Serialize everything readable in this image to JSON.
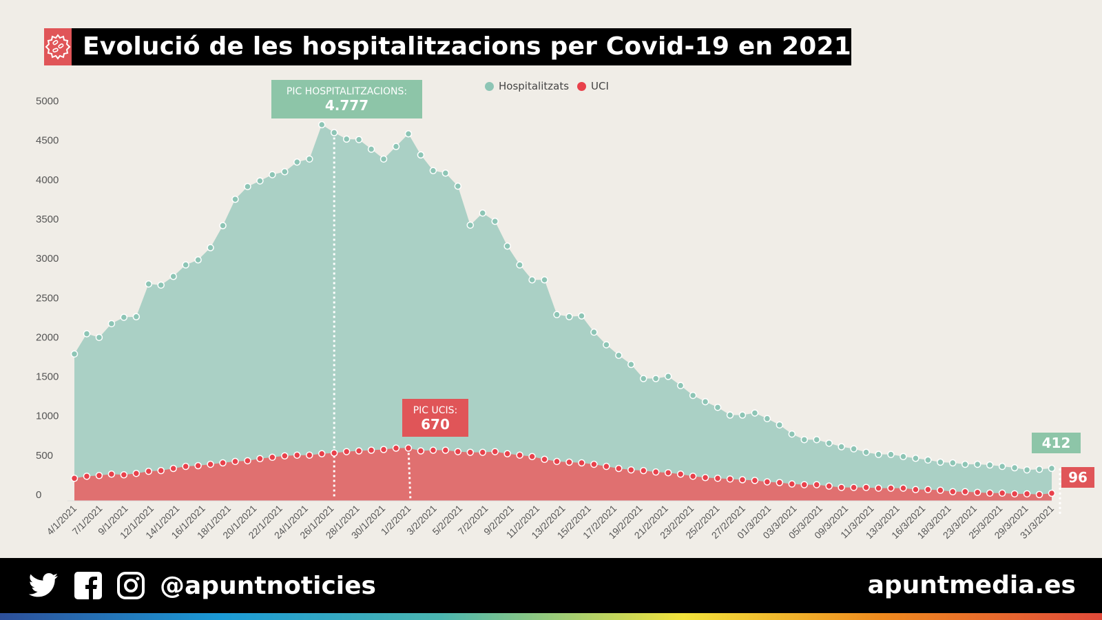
{
  "title": "Evolució de les hospitalitzacions per Covid-19 en 2021",
  "title_icon": "virus-icon",
  "legend": [
    {
      "label": "Hospitalitzats",
      "color": "#8dc5b5"
    },
    {
      "label": "UCI",
      "color": "#e8414b"
    }
  ],
  "annotations": {
    "hosp_peak": {
      "label": "PIC HOSPITALITZACIONS:",
      "value": "4.777"
    },
    "uci_peak": {
      "label": "PIC UCIS:",
      "value": "670"
    },
    "hosp_last": "412",
    "uci_last": "96"
  },
  "footer": {
    "icons": [
      "twitter-icon",
      "facebook-icon",
      "instagram-icon"
    ],
    "handle": "@apuntnoticies",
    "site": "apuntmedia.es"
  },
  "chart_data": {
    "type": "area",
    "title": "Evolució de les hospitalitzacions per Covid-19 en 2021",
    "ylim": [
      0,
      5000
    ],
    "yticks": [
      0,
      500,
      1000,
      1500,
      2000,
      2500,
      3000,
      3500,
      4000,
      4500,
      5000
    ],
    "grid": false,
    "legend_position": "top-center",
    "xtick_labels": [
      "4/1/2021",
      "7/1/2021",
      "9/1/2021",
      "12/1/2021",
      "14/1/2021",
      "16/1/2021",
      "18/1/2021",
      "20/1/2021",
      "22/1/2021",
      "24/1/2021",
      "26/1/2021",
      "28/1/2021",
      "30/1/2021",
      "1/2/2021",
      "3/2/2021",
      "5/2/2021",
      "7/2/2021",
      "9/2/2021",
      "11/2/2021",
      "13/2/2021",
      "15/2/2021",
      "17/2/2021",
      "19/2/2021",
      "21/2/2021",
      "23/2/2021",
      "25/2/2021",
      "27/2/2021",
      "01/3/2021",
      "03/3/2021",
      "05/3/2021",
      "09/3/2021",
      "11/3/2021",
      "13/3/2021",
      "16/3/2021",
      "18/3/2021",
      "23/3/2021",
      "25/3/2021",
      "29/3/2021",
      "31/3/2021"
    ],
    "series": [
      {
        "name": "Hospitalitzats",
        "color": "#8dc5b5",
        "area_color": "#aad0c5",
        "values": [
          1865,
          2122,
          2075,
          2250,
          2331,
          2338,
          2754,
          2740,
          2850,
          2996,
          3060,
          3215,
          3495,
          3830,
          3991,
          4063,
          4142,
          4180,
          4302,
          4341,
          4777,
          4676,
          4594,
          4588,
          4466,
          4341,
          4500,
          4661,
          4393,
          4194,
          4162,
          3996,
          3501,
          3655,
          3550,
          3235,
          2996,
          2806,
          2806,
          2365,
          2339,
          2348,
          2142,
          1982,
          1848,
          1732,
          1553,
          1553,
          1580,
          1464,
          1339,
          1259,
          1187,
          1089,
          1089,
          1116,
          1044,
          964,
          848,
          777,
          777,
          732,
          687,
          660,
          616,
          589,
          589,
          562,
          540,
          518,
          491,
          482,
          464,
          464,
          455,
          437,
          420,
          393,
          400,
          412
        ]
      },
      {
        "name": "UCI",
        "color": "#e8414b",
        "area_color": "#e07070",
        "values": [
          286,
          312,
          321,
          339,
          330,
          348,
          375,
          384,
          411,
          437,
          446,
          464,
          482,
          500,
          509,
          536,
          553,
          571,
          580,
          580,
          598,
          607,
          625,
          634,
          643,
          652,
          669,
          670,
          634,
          643,
          643,
          625,
          616,
          616,
          625,
          598,
          580,
          562,
          527,
          500,
          491,
          482,
          464,
          437,
          411,
          393,
          384,
          366,
          357,
          339,
          312,
          295,
          286,
          277,
          268,
          259,
          241,
          232,
          214,
          205,
          205,
          187,
          170,
          170,
          170,
          161,
          161,
          161,
          143,
          143,
          134,
          116,
          116,
          107,
          98,
          98,
          89,
          89,
          80,
          96
        ]
      }
    ],
    "annotations": [
      {
        "series": "Hospitalitzats",
        "text": "PIC HOSPITALITZACIONS: 4.777",
        "value": 4777
      },
      {
        "series": "UCI",
        "text": "PIC UCIS: 670",
        "value": 670
      }
    ]
  }
}
